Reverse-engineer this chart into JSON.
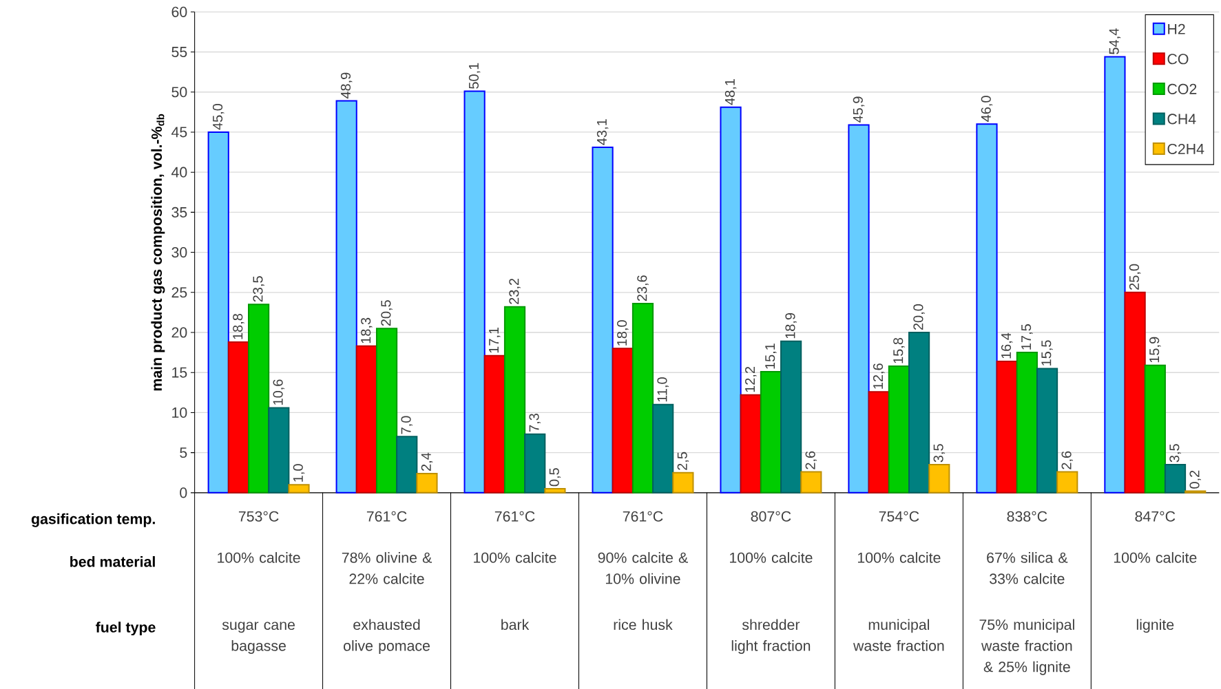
{
  "chart_data": {
    "type": "bar",
    "ylabel": "main product gas composition, vol.-%$_{db}$",
    "categories": [
      "753°C",
      "761°C",
      "761°C",
      "761°C",
      "807°C",
      "754°C",
      "838°C",
      "847°C"
    ],
    "series": [
      {
        "name": "H2",
        "color": "#66ccff",
        "values": [
          45.0,
          48.9,
          50.1,
          43.1,
          48.1,
          45.9,
          46.0,
          54.4
        ],
        "value_labels": [
          "45,0",
          "48,9",
          "50,1",
          "43,1",
          "48,1",
          "45,9",
          "46,0",
          "54,4"
        ]
      },
      {
        "name": "CO",
        "color": "#ff0000",
        "values": [
          18.8,
          18.3,
          17.1,
          18.0,
          12.2,
          12.6,
          16.4,
          25.0
        ],
        "value_labels": [
          "18,8",
          "18,3",
          "17,1",
          "18,0",
          "12,2",
          "12,6",
          "16,4",
          "25,0"
        ]
      },
      {
        "name": "CO2",
        "color": "#00cc00",
        "values": [
          23.5,
          20.5,
          23.2,
          23.6,
          15.1,
          15.8,
          17.5,
          15.9
        ],
        "value_labels": [
          "23,5",
          "20,5",
          "23,2",
          "23,6",
          "15,1",
          "15,8",
          "17,5",
          "15,9"
        ]
      },
      {
        "name": "CH4",
        "color": "#008080",
        "values": [
          10.6,
          7.0,
          7.3,
          11.0,
          18.9,
          20.0,
          15.5,
          3.5
        ],
        "value_labels": [
          "10,6",
          "7,0",
          "7,3",
          "11,0",
          "18,9",
          "20,0",
          "15,5",
          "3,5"
        ]
      },
      {
        "name": "C2H4",
        "color": "#ffc000",
        "values": [
          1.0,
          2.4,
          0.5,
          2.5,
          2.6,
          3.5,
          2.6,
          0.2
        ],
        "value_labels": [
          "1,0",
          "2,4",
          "0,5",
          "2,5",
          "2,6",
          "3,5",
          "2,6",
          "0,2"
        ]
      }
    ],
    "ylim": [
      0,
      60
    ],
    "yticks": [
      0,
      5,
      10,
      15,
      20,
      25,
      30,
      35,
      40,
      45,
      50,
      55,
      60
    ],
    "grid": "y",
    "legend": "top right",
    "annotations": [
      "gasification temp.",
      "bed material",
      "fuel type",
      "100% calcite",
      "78% olivine & 22% calcite",
      "100% calcite",
      "90% calcite & 10% olivine",
      "100% calcite",
      "100% calcite",
      "67% silica & 33% calcite",
      "100% calcite",
      "sugar cane bagasse",
      "exhausted olive pomace",
      "bark",
      "rice husk",
      "shredder light fraction",
      "municipal waste fraction",
      "75% municipal waste fraction & 25% lignite",
      "lignite"
    ]
  }
}
